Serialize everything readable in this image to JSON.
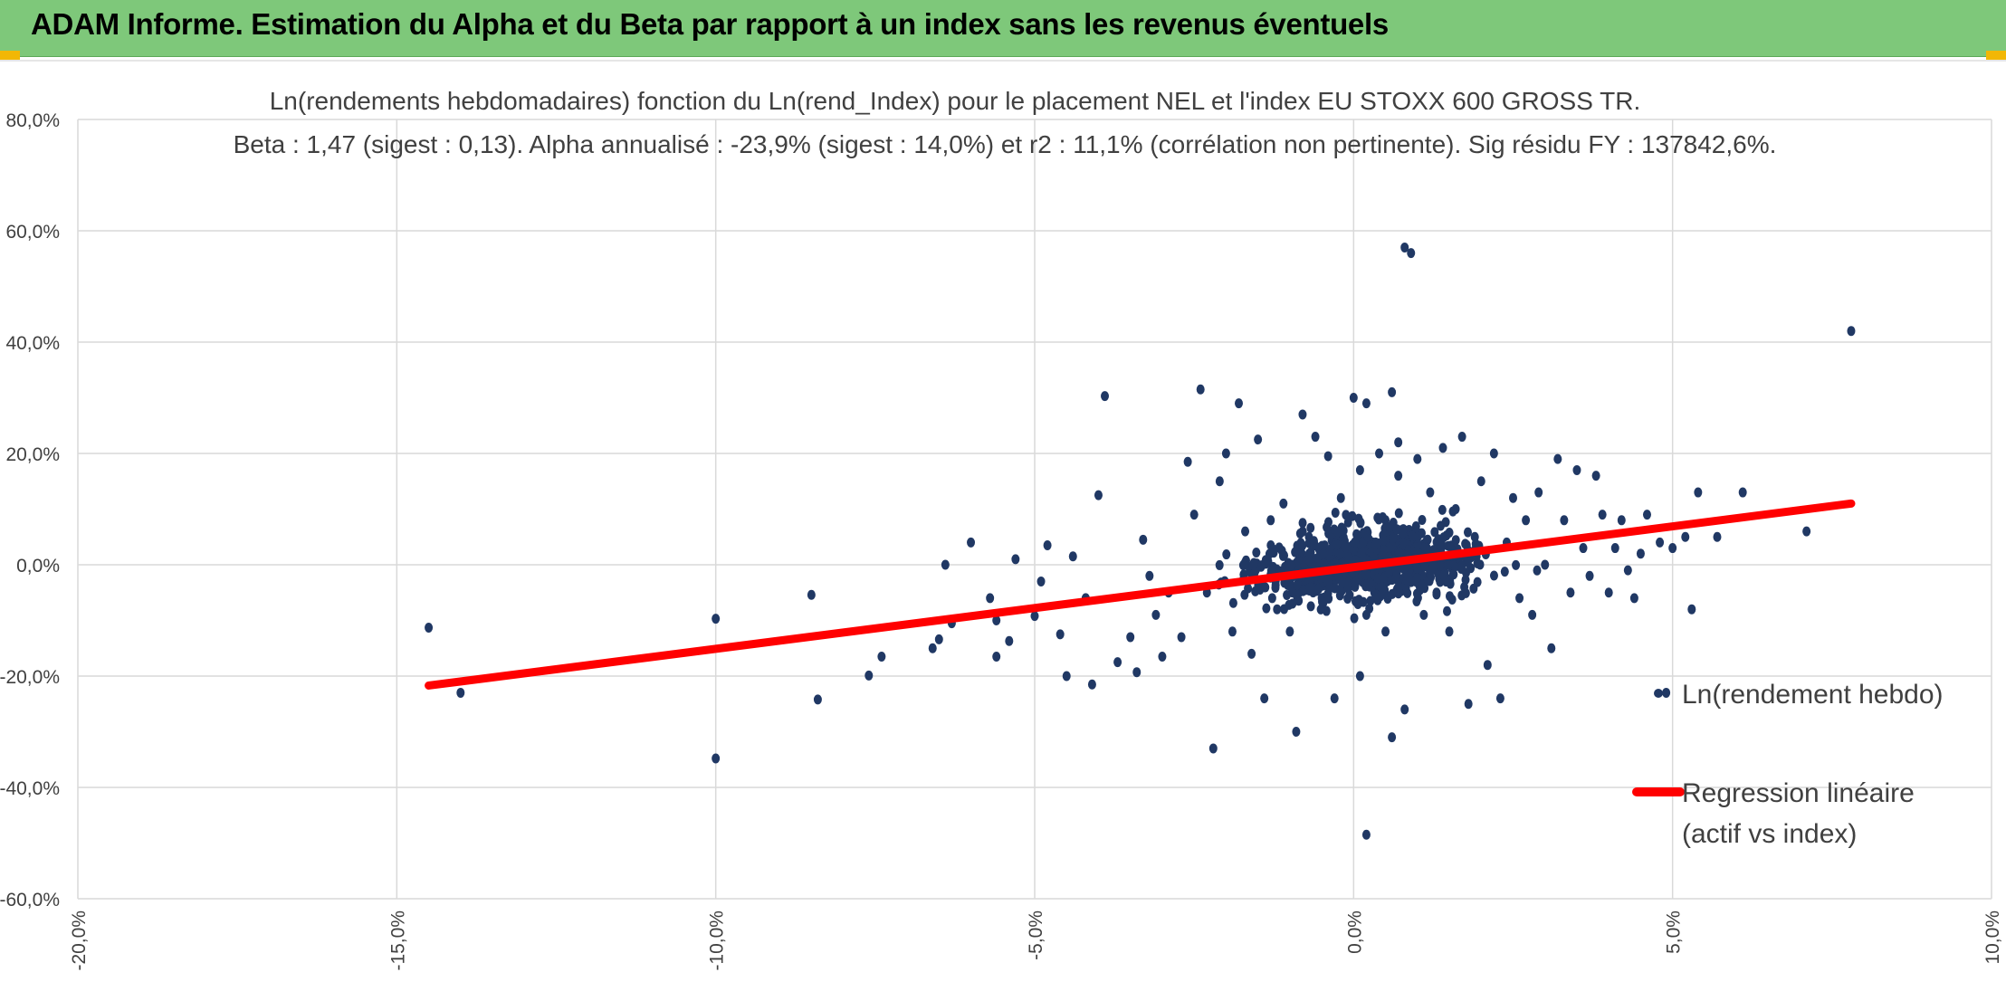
{
  "header": {
    "title": "ADAM Informe. Estimation du Alpha et du Beta par rapport à un index sans les revenus éventuels",
    "background": "#7ec87a"
  },
  "chart_data": {
    "type": "scatter",
    "title": "Ln(rendements hebdomadaires) fonction du Ln(rend_Index) pour le placement NEL et l'index EU STOXX 600 GROSS TR.",
    "subtitle": "Beta : 1,47 (sigest : 0,13). Alpha annualisé : -23,9% (sigest : 14,0%) et r2 : 11,1% (corrélation non pertinente). Sig résidu FY : 137842,6%.",
    "xlim": [
      -0.2,
      0.1
    ],
    "ylim": [
      -0.6,
      0.8
    ],
    "x_ticks": [
      -0.2,
      -0.15,
      -0.1,
      -0.05,
      0.0,
      0.05,
      0.1
    ],
    "x_tick_labels": [
      "-20,0%",
      "-15,0%",
      "-10,0%",
      "-5,0%",
      "0,0%",
      "5,0%",
      "10,0%"
    ],
    "y_ticks": [
      0.8,
      0.6,
      0.4,
      0.2,
      0.0,
      -0.2,
      -0.4,
      -0.6
    ],
    "y_tick_labels": [
      "80,0%",
      "60,0%",
      "40,0%",
      "20,0%",
      "0,0%",
      "-20,0%",
      "-40,0%",
      "-60,0%"
    ],
    "grid": true,
    "legend_position": "right",
    "series": [
      {
        "name": "Ln(rendement hebdo)",
        "kind": "scatter",
        "color": "#203864",
        "points": [
          [
            -0.145,
            -0.113
          ],
          [
            -0.14,
            -0.23
          ],
          [
            -0.1,
            -0.097
          ],
          [
            -0.1,
            -0.348
          ],
          [
            -0.085,
            -0.054
          ],
          [
            -0.084,
            -0.242
          ],
          [
            -0.076,
            -0.199
          ],
          [
            -0.074,
            -0.165
          ],
          [
            -0.066,
            -0.15
          ],
          [
            -0.065,
            -0.134
          ],
          [
            -0.064,
            0.0
          ],
          [
            -0.063,
            -0.105
          ],
          [
            -0.06,
            0.04
          ],
          [
            -0.057,
            -0.06
          ],
          [
            -0.056,
            -0.1
          ],
          [
            -0.056,
            -0.165
          ],
          [
            -0.054,
            -0.137
          ],
          [
            -0.053,
            0.01
          ],
          [
            -0.05,
            -0.092
          ],
          [
            -0.049,
            -0.03
          ],
          [
            -0.048,
            0.035
          ],
          [
            -0.046,
            -0.125
          ],
          [
            -0.045,
            -0.2
          ],
          [
            -0.044,
            0.015
          ],
          [
            -0.042,
            -0.06
          ],
          [
            -0.041,
            -0.215
          ],
          [
            -0.04,
            0.125
          ],
          [
            -0.039,
            0.303
          ],
          [
            -0.037,
            -0.175
          ],
          [
            -0.035,
            -0.13
          ],
          [
            -0.034,
            -0.193
          ],
          [
            -0.033,
            0.045
          ],
          [
            -0.032,
            -0.02
          ],
          [
            -0.031,
            -0.09
          ],
          [
            -0.03,
            -0.165
          ],
          [
            -0.029,
            -0.05
          ],
          [
            -0.027,
            -0.13
          ],
          [
            -0.026,
            0.185
          ],
          [
            -0.025,
            0.09
          ],
          [
            -0.024,
            0.315
          ],
          [
            -0.023,
            -0.05
          ],
          [
            -0.022,
            -0.33
          ],
          [
            -0.021,
            0.15
          ],
          [
            -0.02,
            0.2
          ],
          [
            -0.019,
            -0.12
          ],
          [
            -0.018,
            0.29
          ],
          [
            -0.017,
            0.06
          ],
          [
            -0.016,
            -0.16
          ],
          [
            -0.015,
            0.225
          ],
          [
            -0.014,
            -0.24
          ],
          [
            -0.013,
            0.08
          ],
          [
            -0.012,
            -0.08
          ],
          [
            -0.011,
            0.11
          ],
          [
            -0.01,
            -0.12
          ],
          [
            -0.009,
            -0.3
          ],
          [
            -0.008,
            0.27
          ],
          [
            -0.007,
            0.05
          ],
          [
            -0.006,
            0.23
          ],
          [
            -0.005,
            -0.06
          ],
          [
            -0.004,
            0.195
          ],
          [
            -0.003,
            -0.24
          ],
          [
            -0.002,
            0.12
          ],
          [
            -0.001,
            0.0
          ],
          [
            0.0,
            -0.03
          ],
          [
            0.0,
            0.3
          ],
          [
            0.001,
            0.17
          ],
          [
            0.001,
            -0.2
          ],
          [
            0.002,
            0.29
          ],
          [
            0.002,
            -0.09
          ],
          [
            0.003,
            0.04
          ],
          [
            0.003,
            0.0
          ],
          [
            0.004,
            -0.05
          ],
          [
            0.004,
            0.2
          ],
          [
            0.005,
            -0.12
          ],
          [
            0.005,
            0.08
          ],
          [
            0.006,
            0.31
          ],
          [
            0.006,
            -0.31
          ],
          [
            0.007,
            0.22
          ],
          [
            0.007,
            0.16
          ],
          [
            0.008,
            -0.26
          ],
          [
            0.008,
            0.57
          ],
          [
            0.009,
            0.56
          ],
          [
            0.002,
            -0.485
          ],
          [
            0.01,
            0.19
          ],
          [
            0.011,
            -0.09
          ],
          [
            0.012,
            0.13
          ],
          [
            0.013,
            -0.05
          ],
          [
            0.014,
            0.21
          ],
          [
            0.015,
            -0.12
          ],
          [
            0.016,
            0.1
          ],
          [
            0.017,
            0.23
          ],
          [
            0.018,
            -0.25
          ],
          [
            0.019,
            0.05
          ],
          [
            0.02,
            0.15
          ],
          [
            0.021,
            -0.18
          ],
          [
            0.022,
            0.2
          ],
          [
            0.023,
            -0.24
          ],
          [
            0.024,
            0.04
          ],
          [
            0.025,
            0.12
          ],
          [
            0.026,
            -0.06
          ],
          [
            0.027,
            0.08
          ],
          [
            0.028,
            -0.09
          ],
          [
            0.029,
            0.13
          ],
          [
            0.03,
            0.0
          ],
          [
            0.031,
            -0.15
          ],
          [
            0.032,
            0.19
          ],
          [
            0.033,
            0.08
          ],
          [
            0.034,
            -0.05
          ],
          [
            0.035,
            0.17
          ],
          [
            0.036,
            0.03
          ],
          [
            0.037,
            -0.02
          ],
          [
            0.038,
            0.16
          ],
          [
            0.039,
            0.09
          ],
          [
            0.04,
            -0.05
          ],
          [
            0.041,
            0.03
          ],
          [
            0.042,
            0.08
          ],
          [
            0.043,
            -0.01
          ],
          [
            0.044,
            -0.06
          ],
          [
            0.045,
            0.02
          ],
          [
            0.046,
            0.09
          ],
          [
            0.048,
            0.04
          ],
          [
            0.049,
            -0.23
          ],
          [
            0.05,
            0.03
          ],
          [
            0.052,
            0.05
          ],
          [
            0.053,
            -0.08
          ],
          [
            0.054,
            0.13
          ],
          [
            0.057,
            0.05
          ],
          [
            0.061,
            0.13
          ],
          [
            0.071,
            0.06
          ],
          [
            0.078,
            0.42
          ]
        ]
      },
      {
        "name": "Regression linéaire (actif vs index)",
        "kind": "line",
        "color": "#ff0000",
        "points": [
          [
            -0.145,
            -0.217
          ],
          [
            0.078,
            0.11
          ]
        ]
      }
    ],
    "legend": {
      "items": [
        {
          "label": "Ln(rendement hebdo)",
          "color": "#203864"
        },
        {
          "label_line1": "Regression linéaire",
          "label_line2": "(actif vs index)",
          "color": "#ff0000"
        }
      ]
    }
  }
}
